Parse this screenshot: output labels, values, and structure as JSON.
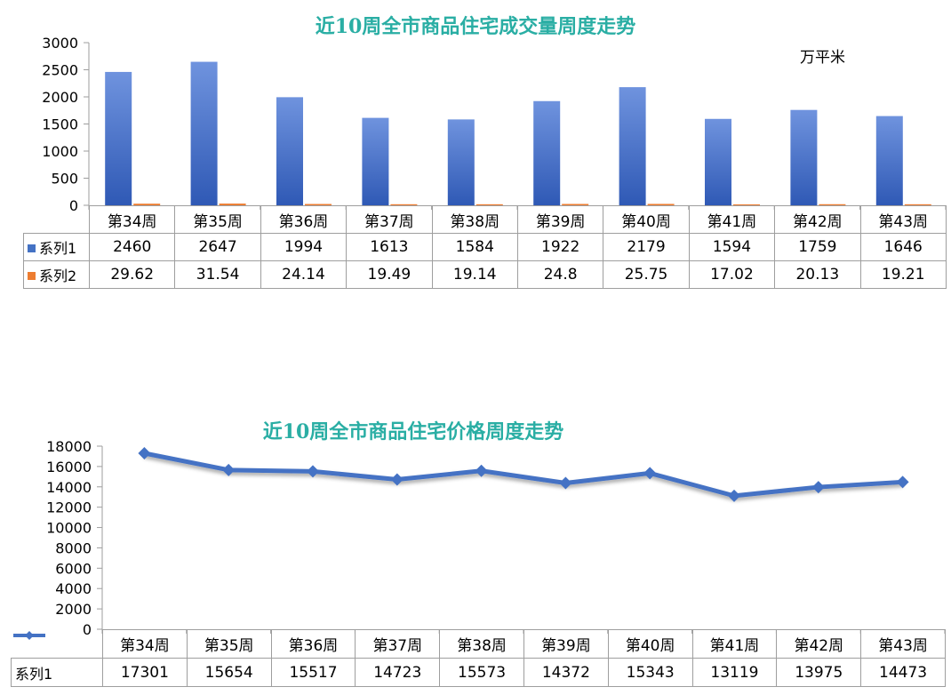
{
  "chart_data": [
    {
      "type": "bar",
      "title": "近10周全市商品住宅成交量周度走势",
      "unit_label": "万平米",
      "categories": [
        "第34周",
        "第35周",
        "第36周",
        "第37周",
        "第38周",
        "第39周",
        "第40周",
        "第41周",
        "第42周",
        "第43周"
      ],
      "series": [
        {
          "name": "系列1",
          "color": "#4472c4",
          "values": [
            2460,
            2647,
            1994,
            1613,
            1584,
            1922,
            2179,
            1594,
            1759,
            1646
          ],
          "labels": [
            "2460",
            "2647",
            "1994",
            "1613",
            "1584",
            "1922",
            "2179",
            "1594",
            "1759",
            "1646"
          ]
        },
        {
          "name": "系列2",
          "color": "#ed7d31",
          "values": [
            29.62,
            31.54,
            24.14,
            19.49,
            19.14,
            24.8,
            25.75,
            17.02,
            20.13,
            19.21
          ],
          "labels": [
            "29.62",
            "31.54",
            "24.14",
            "19.49",
            "19.14",
            "24.8",
            "25.75",
            "17.02",
            "20.13",
            "19.21"
          ]
        }
      ],
      "ylim": [
        0,
        3000
      ],
      "yticks": [
        "0",
        "500",
        "1000",
        "1500",
        "2000",
        "2500",
        "3000"
      ],
      "data_table": true
    },
    {
      "type": "line",
      "title": "近10周全市商品住宅价格周度走势",
      "categories": [
        "第34周",
        "第35周",
        "第36周",
        "第37周",
        "第38周",
        "第39周",
        "第40周",
        "第41周",
        "第42周",
        "第43周"
      ],
      "series": [
        {
          "name": "系列1",
          "color": "#4472c4",
          "values": [
            17301,
            15654,
            15517,
            14723,
            15573,
            14372,
            15343,
            13119,
            13975,
            14473
          ],
          "labels": [
            "17301",
            "15654",
            "15517",
            "14723",
            "15573",
            "14372",
            "15343",
            "13119",
            "13975",
            "14473"
          ]
        }
      ],
      "ylim": [
        0,
        18000
      ],
      "yticks": [
        "0",
        "2000",
        "4000",
        "6000",
        "8000",
        "10000",
        "12000",
        "14000",
        "16000",
        "18000"
      ],
      "marker": "diamond",
      "data_table": true
    }
  ]
}
